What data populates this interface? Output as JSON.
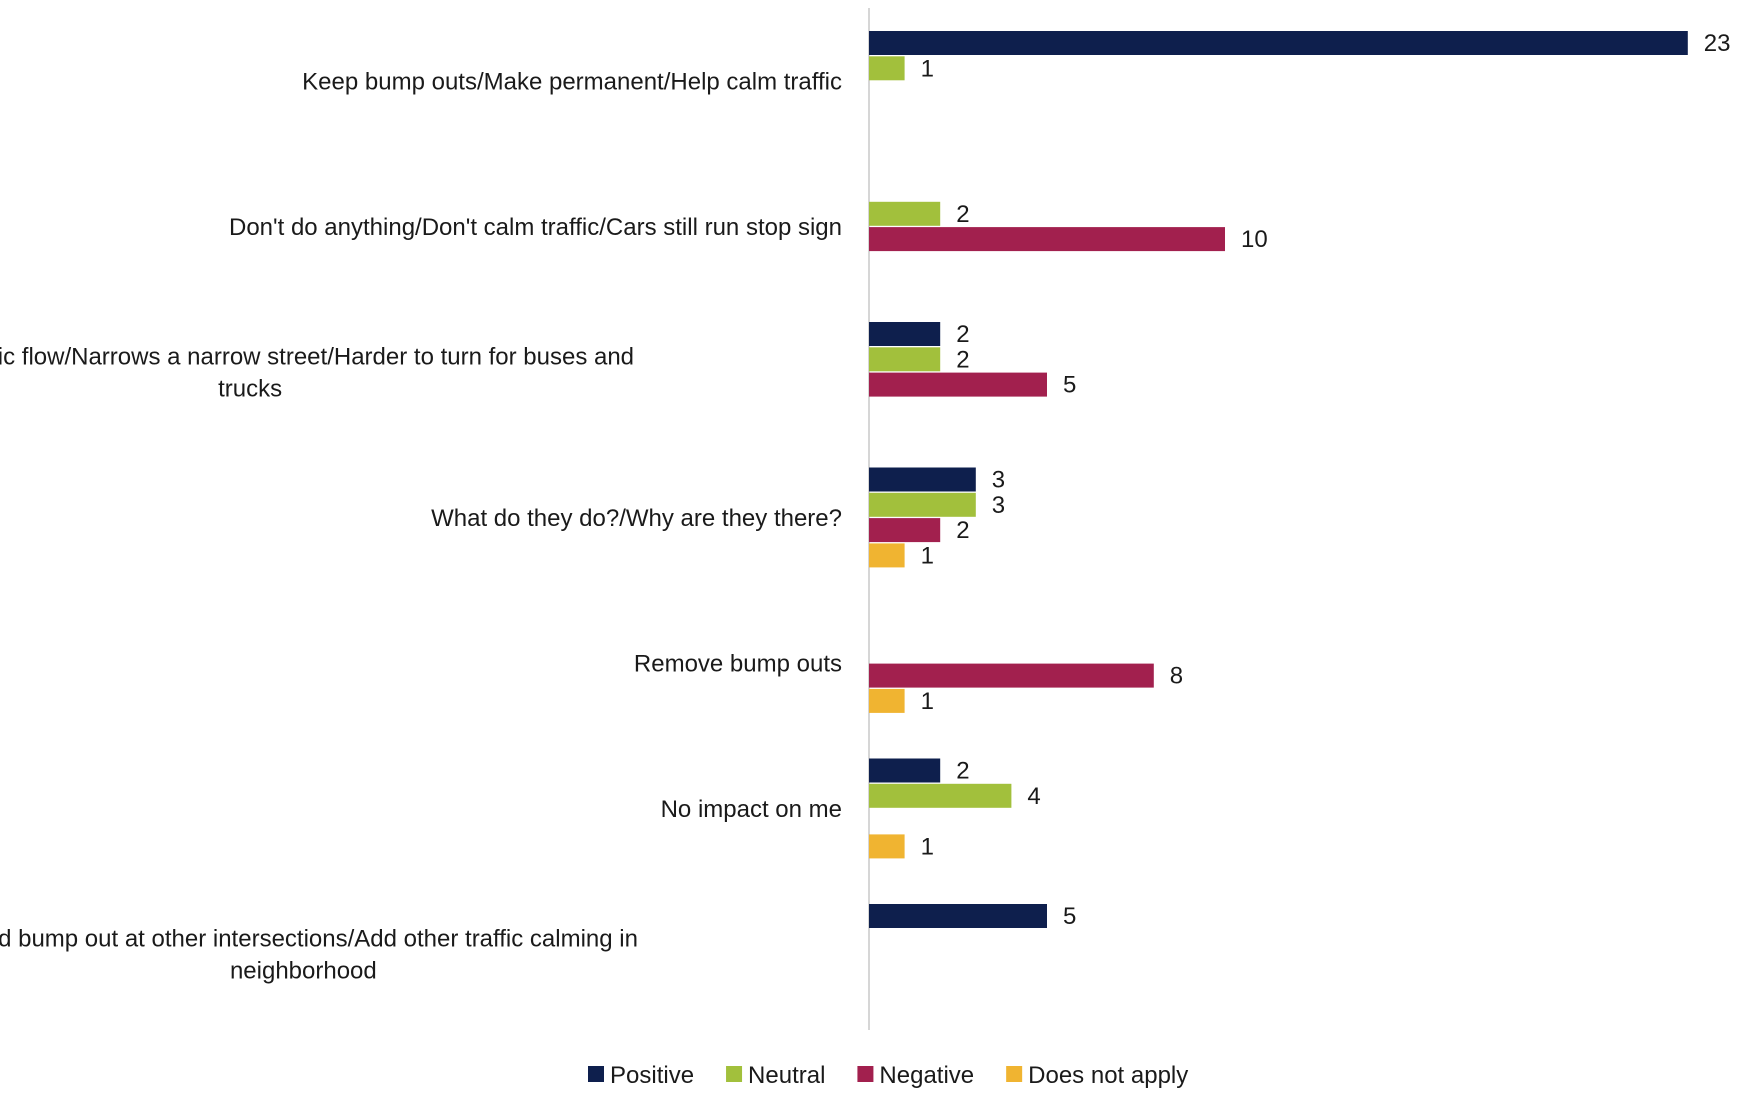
{
  "chart_data": {
    "type": "bar",
    "orientation": "horizontal",
    "categories": [
      "Keep bump outs/Make permanent/Help calm traffic",
      "Don't do anything/Don't calm traffic/Cars still run stop sign",
      "Impacts traffic flow/Narrows a narrow street/Harder to turn for buses and trucks",
      "What do they do?/Why are they there?",
      "Remove bump outs",
      "No impact on me",
      "Add bump out at other intersections/Add other traffic calming in neighborhood"
    ],
    "category_lines": [
      [
        "Keep bump outs/Make permanent/Help calm traffic"
      ],
      [
        "Don't do anything/Don't calm traffic/Cars still run stop sign"
      ],
      [
        "Impacts traffic flow/Narrows a narrow street/Harder to turn for buses and",
        "trucks"
      ],
      [
        "What do they do?/Why are they there?"
      ],
      [
        "Remove bump outs"
      ],
      [
        "No impact on me"
      ],
      [
        "Add bump out at other intersections/Add other traffic calming in",
        "neighborhood"
      ]
    ],
    "series": [
      {
        "name": "Positive",
        "color": "#0e1f4d",
        "values": [
          23,
          null,
          2,
          3,
          null,
          2,
          5
        ]
      },
      {
        "name": "Neutral",
        "color": "#a2c03c",
        "values": [
          1,
          2,
          2,
          3,
          null,
          4,
          null
        ]
      },
      {
        "name": "Negative",
        "color": "#a2204e",
        "values": [
          null,
          10,
          5,
          2,
          8,
          null,
          null
        ]
      },
      {
        "name": "Does not apply",
        "color": "#f0b431",
        "values": [
          null,
          null,
          null,
          1,
          1,
          1,
          null
        ]
      }
    ],
    "xlim": [
      0,
      23
    ],
    "grid": false,
    "legend": "bottom",
    "title": "",
    "xlabel": "",
    "ylabel": ""
  }
}
